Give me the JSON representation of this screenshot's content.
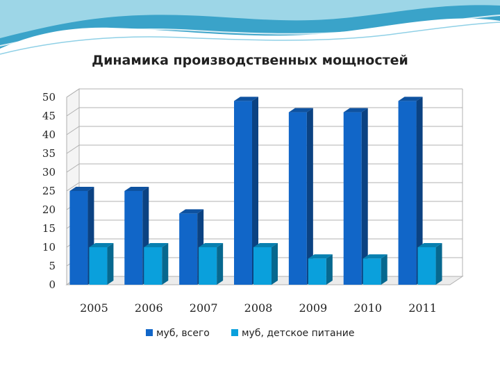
{
  "chart_data": {
    "type": "bar",
    "title": "Динамика производственных мощностей",
    "categories": [
      "2005",
      "2006",
      "2007",
      "2008",
      "2009",
      "2010",
      "2011"
    ],
    "series": [
      {
        "name": "муб, всего",
        "values": [
          25,
          25,
          19,
          49,
          46,
          46,
          49
        ],
        "color": "#1166c8"
      },
      {
        "name": "муб, детское питание",
        "values": [
          10,
          10,
          10,
          10,
          7,
          7,
          10
        ],
        "color": "#0aa0dc"
      }
    ],
    "ylim": [
      0,
      50
    ],
    "yticks": [
      0,
      5,
      10,
      15,
      20,
      25,
      30,
      35,
      40,
      45,
      50
    ],
    "grid": true,
    "legend_position": "bottom",
    "xlabel": "",
    "ylabel": ""
  },
  "colors": {
    "grid": "#b0b0b0",
    "wave_dark": "#3aa3c9",
    "wave_light": "#a8dcea"
  }
}
